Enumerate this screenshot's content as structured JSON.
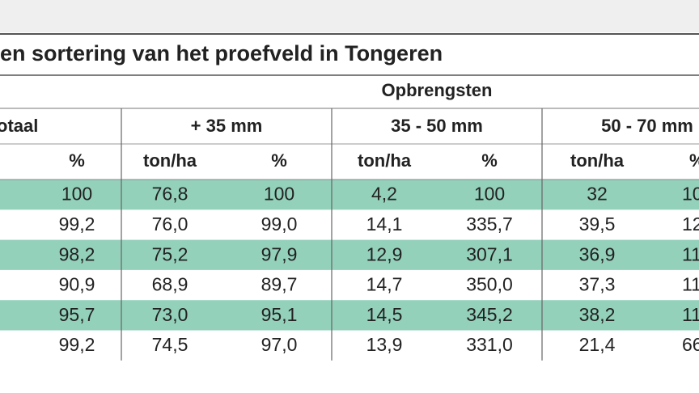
{
  "title": "en sortering van het proefveld in Tongeren",
  "group_header": "Opbrengsten",
  "column_groups": [
    "otaal",
    "+ 35 mm",
    "35 - 50 mm",
    "50 - 70 mm"
  ],
  "subheaders": [
    "%",
    "ton/ha",
    "%",
    "ton/ha",
    "%",
    "ton/ha",
    "%"
  ],
  "rows": [
    [
      "100",
      "76,8",
      "100",
      "4,2",
      "100",
      "32",
      "10"
    ],
    [
      "99,2",
      "76,0",
      "99,0",
      "14,1",
      "335,7",
      "39,5",
      "12"
    ],
    [
      "98,2",
      "75,2",
      "97,9",
      "12,9",
      "307,1",
      "36,9",
      "11"
    ],
    [
      "90,9",
      "68,9",
      "89,7",
      "14,7",
      "350,0",
      "37,3",
      "11"
    ],
    [
      "95,7",
      "73,0",
      "95,1",
      "14,5",
      "345,2",
      "38,2",
      "11"
    ],
    [
      "99,2",
      "74,5",
      "97,0",
      "13,9",
      "331,0",
      "21,4",
      "66"
    ]
  ]
}
